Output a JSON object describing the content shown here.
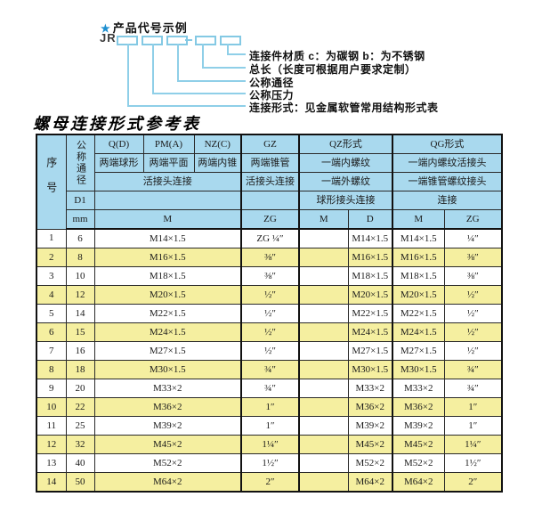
{
  "diagram": {
    "star_icon": "★",
    "title": "产品代号示例",
    "prefix": "JR",
    "labels": [
      "连接件材质  c：为碳钢  b：为不锈钢",
      "总长（长度可根据用户要求定制）",
      "公称通径",
      "公称压力",
      "连接形式：见金属软管常用结构形式表"
    ]
  },
  "table": {
    "title": "螺母连接形式参考表",
    "header": {
      "seq": "序号",
      "dn": "公称通径",
      "d1": "D1",
      "mm": "mm",
      "groups": {
        "q": "Q(D)",
        "pm": "PM(A)",
        "nz": "NZ(C)",
        "gz": "GZ",
        "qz": "QZ形式",
        "qg": "QG形式"
      },
      "row2": {
        "q": "两端球形",
        "pm": "两端平面",
        "nz": "两端内锥",
        "gz": "两端锥管",
        "qz": "一端内螺纹",
        "qg": "一端内螺纹活接头"
      },
      "row3": {
        "qpmnz": "活接头连接",
        "gz": "活接头连接",
        "qz": "一端外螺纹",
        "qg": "一端锥管螺纹接头"
      },
      "row4": {
        "qz": "球形接头连接",
        "qg": "连接"
      },
      "row5": {
        "m": "M",
        "gz_zg": "ZG",
        "qz_m": "M",
        "qz_d": "D",
        "qg_m": "M",
        "qg_zg": "ZG"
      }
    },
    "rows": [
      {
        "no": "1",
        "dn": "6",
        "m": "M14×1.5",
        "gz": "ZG ¼″",
        "qz_m": "",
        "qz_d": "M14×1.5",
        "qg_m": "M14×1.5",
        "qg_zg": "¼″"
      },
      {
        "no": "2",
        "dn": "8",
        "m": "M16×1.5",
        "gz": "⅜″",
        "qz_m": "",
        "qz_d": "M16×1.5",
        "qg_m": "M16×1.5",
        "qg_zg": "⅜″"
      },
      {
        "no": "3",
        "dn": "10",
        "m": "M18×1.5",
        "gz": "⅜″",
        "qz_m": "",
        "qz_d": "M18×1.5",
        "qg_m": "M18×1.5",
        "qg_zg": "⅜″"
      },
      {
        "no": "4",
        "dn": "12",
        "m": "M20×1.5",
        "gz": "½″",
        "qz_m": "",
        "qz_d": "M20×1.5",
        "qg_m": "M20×1.5",
        "qg_zg": "½″"
      },
      {
        "no": "5",
        "dn": "14",
        "m": "M22×1.5",
        "gz": "½″",
        "qz_m": "",
        "qz_d": "M22×1.5",
        "qg_m": "M22×1.5",
        "qg_zg": "½″"
      },
      {
        "no": "6",
        "dn": "15",
        "m": "M24×1.5",
        "gz": "½″",
        "qz_m": "",
        "qz_d": "M24×1.5",
        "qg_m": "M24×1.5",
        "qg_zg": "½″"
      },
      {
        "no": "7",
        "dn": "16",
        "m": "M27×1.5",
        "gz": "½″",
        "qz_m": "",
        "qz_d": "M27×1.5",
        "qg_m": "M27×1.5",
        "qg_zg": "½″"
      },
      {
        "no": "8",
        "dn": "18",
        "m": "M30×1.5",
        "gz": "¾″",
        "qz_m": "",
        "qz_d": "M30×1.5",
        "qg_m": "M30×1.5",
        "qg_zg": "¾″"
      },
      {
        "no": "9",
        "dn": "20",
        "m": "M33×2",
        "gz": "¾″",
        "qz_m": "",
        "qz_d": "M33×2",
        "qg_m": "M33×2",
        "qg_zg": "¾″"
      },
      {
        "no": "10",
        "dn": "22",
        "m": "M36×2",
        "gz": "1″",
        "qz_m": "",
        "qz_d": "M36×2",
        "qg_m": "M36×2",
        "qg_zg": "1″"
      },
      {
        "no": "11",
        "dn": "25",
        "m": "M39×2",
        "gz": "1″",
        "qz_m": "",
        "qz_d": "M39×2",
        "qg_m": "M39×2",
        "qg_zg": "1″"
      },
      {
        "no": "12",
        "dn": "32",
        "m": "M45×2",
        "gz": "1¼″",
        "qz_m": "",
        "qz_d": "M45×2",
        "qg_m": "M45×2",
        "qg_zg": "1¼″"
      },
      {
        "no": "13",
        "dn": "40",
        "m": "M52×2",
        "gz": "1½″",
        "qz_m": "",
        "qz_d": "M52×2",
        "qg_m": "M52×2",
        "qg_zg": "1½″"
      },
      {
        "no": "14",
        "dn": "50",
        "m": "M64×2",
        "gz": "2″",
        "qz_m": "",
        "qz_d": "M64×2",
        "qg_m": "M64×2",
        "qg_zg": "2″"
      }
    ],
    "colors": {
      "header_blue": "#a9d9ee",
      "row_yellow": "#f5efa0",
      "line_blue": "#8fcfe8",
      "border": "#111111"
    }
  }
}
